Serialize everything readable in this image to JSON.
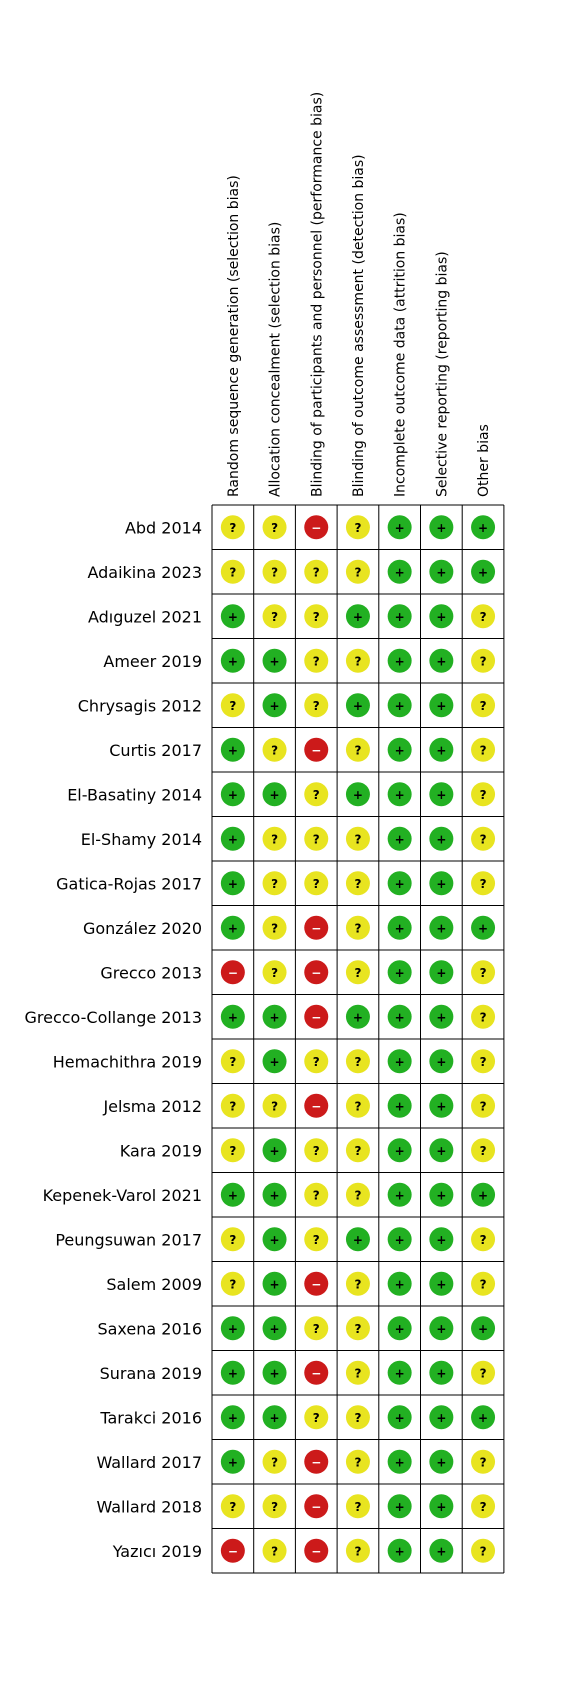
{
  "chart_data": {
    "type": "table",
    "domains": [
      "Random sequence generation (selection bias)",
      "Allocation concealment (selection bias)",
      "Blinding of participants and personnel (performance bias)",
      "Blinding of outcome assessment (detection bias)",
      "Incomplete outcome data (attrition bias)",
      "Selective reporting (reporting bias)",
      "Other bias"
    ],
    "legend": {
      "low": {
        "symbol": "+",
        "color": "#22b022"
      },
      "unclear": {
        "symbol": "?",
        "color": "#e8e420"
      },
      "high": {
        "symbol": "−",
        "color": "#cc1a1a"
      }
    },
    "studies": [
      {
        "name": "Abd 2014",
        "ratings": [
          "unclear",
          "unclear",
          "high",
          "unclear",
          "low",
          "low",
          "low"
        ]
      },
      {
        "name": "Adaikina 2023",
        "ratings": [
          "unclear",
          "unclear",
          "unclear",
          "unclear",
          "low",
          "low",
          "low"
        ]
      },
      {
        "name": "Adıguzel 2021",
        "ratings": [
          "low",
          "unclear",
          "unclear",
          "low",
          "low",
          "low",
          "unclear"
        ]
      },
      {
        "name": "Ameer 2019",
        "ratings": [
          "low",
          "low",
          "unclear",
          "unclear",
          "low",
          "low",
          "unclear"
        ]
      },
      {
        "name": "Chrysagis 2012",
        "ratings": [
          "unclear",
          "low",
          "unclear",
          "low",
          "low",
          "low",
          "unclear"
        ]
      },
      {
        "name": "Curtis 2017",
        "ratings": [
          "low",
          "unclear",
          "high",
          "unclear",
          "low",
          "low",
          "unclear"
        ]
      },
      {
        "name": "El-Basatiny 2014",
        "ratings": [
          "low",
          "low",
          "unclear",
          "low",
          "low",
          "low",
          "unclear"
        ]
      },
      {
        "name": "El-Shamy 2014",
        "ratings": [
          "low",
          "unclear",
          "unclear",
          "unclear",
          "low",
          "low",
          "unclear"
        ]
      },
      {
        "name": "Gatica-Rojas 2017",
        "ratings": [
          "low",
          "unclear",
          "unclear",
          "unclear",
          "low",
          "low",
          "unclear"
        ]
      },
      {
        "name": "González 2020",
        "ratings": [
          "low",
          "unclear",
          "high",
          "unclear",
          "low",
          "low",
          "low"
        ]
      },
      {
        "name": "Grecco 2013",
        "ratings": [
          "high",
          "unclear",
          "high",
          "unclear",
          "low",
          "low",
          "unclear"
        ]
      },
      {
        "name": "Grecco-Collange 2013",
        "ratings": [
          "low",
          "low",
          "high",
          "low",
          "low",
          "low",
          "unclear"
        ]
      },
      {
        "name": "Hemachithra 2019",
        "ratings": [
          "unclear",
          "low",
          "unclear",
          "unclear",
          "low",
          "low",
          "unclear"
        ]
      },
      {
        "name": "Jelsma 2012",
        "ratings": [
          "unclear",
          "unclear",
          "high",
          "unclear",
          "low",
          "low",
          "unclear"
        ]
      },
      {
        "name": "Kara 2019",
        "ratings": [
          "unclear",
          "low",
          "unclear",
          "unclear",
          "low",
          "low",
          "unclear"
        ]
      },
      {
        "name": "Kepenek-Varol 2021",
        "ratings": [
          "low",
          "low",
          "unclear",
          "unclear",
          "low",
          "low",
          "low"
        ]
      },
      {
        "name": "Peungsuwan 2017",
        "ratings": [
          "unclear",
          "low",
          "unclear",
          "low",
          "low",
          "low",
          "unclear"
        ]
      },
      {
        "name": "Salem 2009",
        "ratings": [
          "unclear",
          "low",
          "high",
          "unclear",
          "low",
          "low",
          "unclear"
        ]
      },
      {
        "name": "Saxena 2016",
        "ratings": [
          "low",
          "low",
          "unclear",
          "unclear",
          "low",
          "low",
          "low"
        ]
      },
      {
        "name": "Surana 2019",
        "ratings": [
          "low",
          "low",
          "high",
          "unclear",
          "low",
          "low",
          "unclear"
        ]
      },
      {
        "name": "Tarakci 2016",
        "ratings": [
          "low",
          "low",
          "unclear",
          "unclear",
          "low",
          "low",
          "low"
        ]
      },
      {
        "name": "Wallard 2017",
        "ratings": [
          "low",
          "unclear",
          "high",
          "unclear",
          "low",
          "low",
          "unclear"
        ]
      },
      {
        "name": "Wallard 2018",
        "ratings": [
          "unclear",
          "unclear",
          "high",
          "unclear",
          "low",
          "low",
          "unclear"
        ]
      },
      {
        "name": "Yazıcı 2019",
        "ratings": [
          "high",
          "unclear",
          "high",
          "unclear",
          "low",
          "low",
          "unclear"
        ]
      }
    ]
  }
}
